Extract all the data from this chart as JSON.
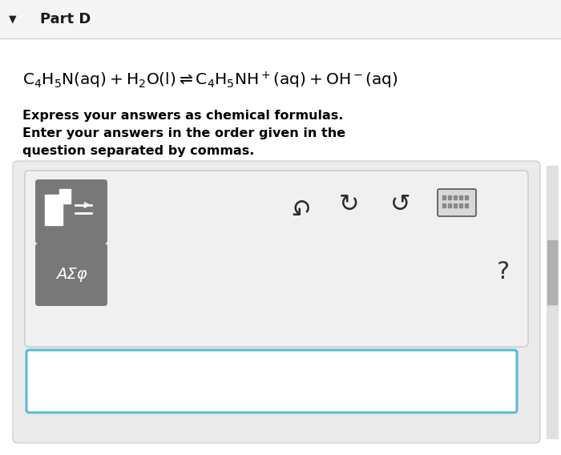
{
  "background_color": "#ffffff",
  "header_bg_color": "#f5f5f5",
  "header_text": "Part D",
  "panel_bg": "#ebebeb",
  "panel_border": "#d0d0d0",
  "btn_bg": "#787878",
  "btn2_text": "ΑΣφ",
  "question_mark": "?",
  "input_border": "#5bbccc",
  "input_bg": "#ffffff",
  "scrollbar_bg": "#e0e0e0",
  "scrollbar_thumb": "#b0b0b0",
  "instruction_line1": "Express your answers as chemical formulas.",
  "instruction_line2": "Enter your answers in the order given in the",
  "instruction_line3": "question separated by commas."
}
